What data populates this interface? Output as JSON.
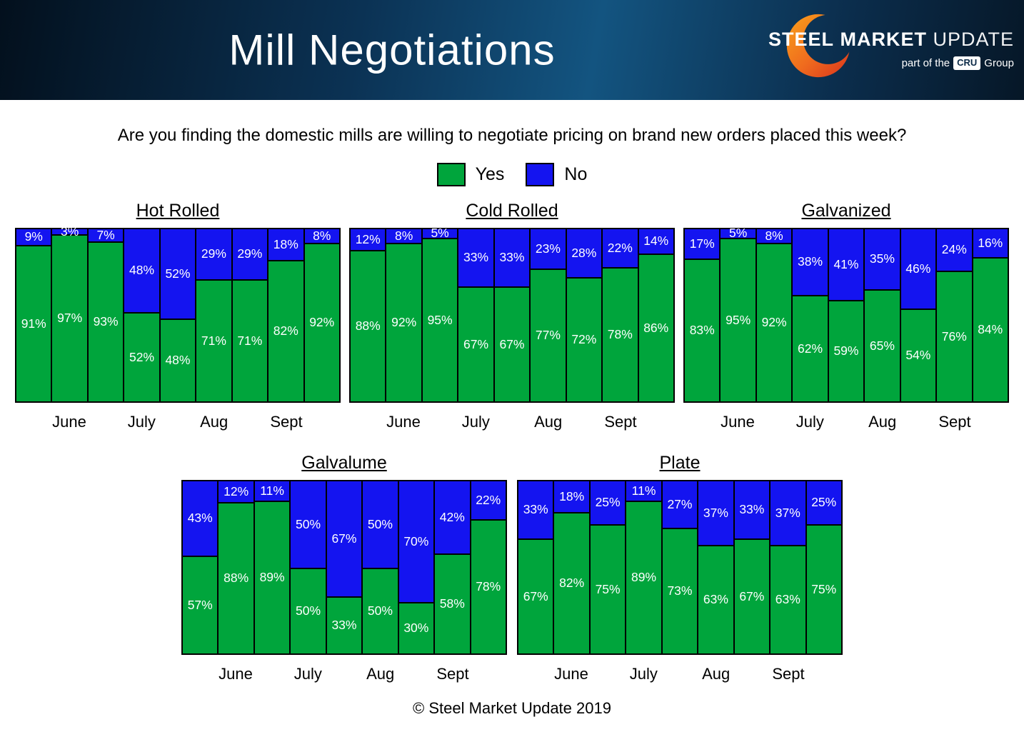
{
  "header": {
    "title": "Mill Negotiations",
    "logo": {
      "steel": "STEEL",
      "market": "MARKET",
      "update": "UPDATE",
      "part_of": "part of the",
      "cru": "CRU",
      "group": "Group"
    }
  },
  "question": "Are you finding the domestic mills are willing to negotiate pricing on brand new orders placed this week?",
  "legend": {
    "yes": "Yes",
    "no": "No"
  },
  "colors": {
    "yes": "#00a53c",
    "no": "#1414f0"
  },
  "months": [
    "June",
    "July",
    "Aug",
    "Sept"
  ],
  "footer": "© Steel Market Update 2019",
  "chart_data": [
    {
      "type": "bar",
      "stacked": true,
      "title": "Hot Rolled",
      "x_note": "9 weekly bars, June–Sept; month labels centered under bars 2, 4, 6, 8",
      "ylim": [
        0,
        100
      ],
      "series": [
        {
          "name": "Yes",
          "color": "#00a53c",
          "values": [
            91,
            97,
            93,
            52,
            48,
            71,
            71,
            82,
            92
          ]
        },
        {
          "name": "No",
          "color": "#1414f0",
          "values": [
            9,
            3,
            7,
            48,
            52,
            29,
            29,
            18,
            8
          ]
        }
      ]
    },
    {
      "type": "bar",
      "stacked": true,
      "title": "Cold Rolled",
      "x_note": "9 weekly bars, June–Sept; month labels centered under bars 2, 4, 6, 8",
      "ylim": [
        0,
        100
      ],
      "series": [
        {
          "name": "Yes",
          "color": "#00a53c",
          "values": [
            88,
            92,
            95,
            67,
            67,
            77,
            72,
            78,
            86
          ]
        },
        {
          "name": "No",
          "color": "#1414f0",
          "values": [
            12,
            8,
            5,
            33,
            33,
            23,
            28,
            22,
            14
          ]
        }
      ]
    },
    {
      "type": "bar",
      "stacked": true,
      "title": "Galvanized",
      "x_note": "9 weekly bars, June–Sept; month labels centered under bars 2, 4, 6, 8",
      "ylim": [
        0,
        100
      ],
      "series": [
        {
          "name": "Yes",
          "color": "#00a53c",
          "values": [
            83,
            95,
            92,
            62,
            59,
            65,
            54,
            76,
            84
          ]
        },
        {
          "name": "No",
          "color": "#1414f0",
          "values": [
            17,
            5,
            8,
            38,
            41,
            35,
            46,
            24,
            16
          ]
        }
      ]
    },
    {
      "type": "bar",
      "stacked": true,
      "title": "Galvalume",
      "x_note": "9 weekly bars, June–Sept; month labels centered under bars 2, 4, 6, 8",
      "ylim": [
        0,
        100
      ],
      "series": [
        {
          "name": "Yes",
          "color": "#00a53c",
          "values": [
            57,
            88,
            89,
            50,
            33,
            50,
            30,
            58,
            78
          ]
        },
        {
          "name": "No",
          "color": "#1414f0",
          "values": [
            43,
            12,
            11,
            50,
            67,
            50,
            70,
            42,
            22
          ]
        }
      ]
    },
    {
      "type": "bar",
      "stacked": true,
      "title": "Plate",
      "x_note": "9 weekly bars, June–Sept; month labels centered under bars 2, 4, 6, 8",
      "ylim": [
        0,
        100
      ],
      "series": [
        {
          "name": "Yes",
          "color": "#00a53c",
          "values": [
            67,
            82,
            75,
            89,
            73,
            63,
            67,
            63,
            75
          ]
        },
        {
          "name": "No",
          "color": "#1414f0",
          "values": [
            33,
            18,
            25,
            11,
            27,
            37,
            33,
            37,
            25
          ]
        }
      ]
    }
  ]
}
